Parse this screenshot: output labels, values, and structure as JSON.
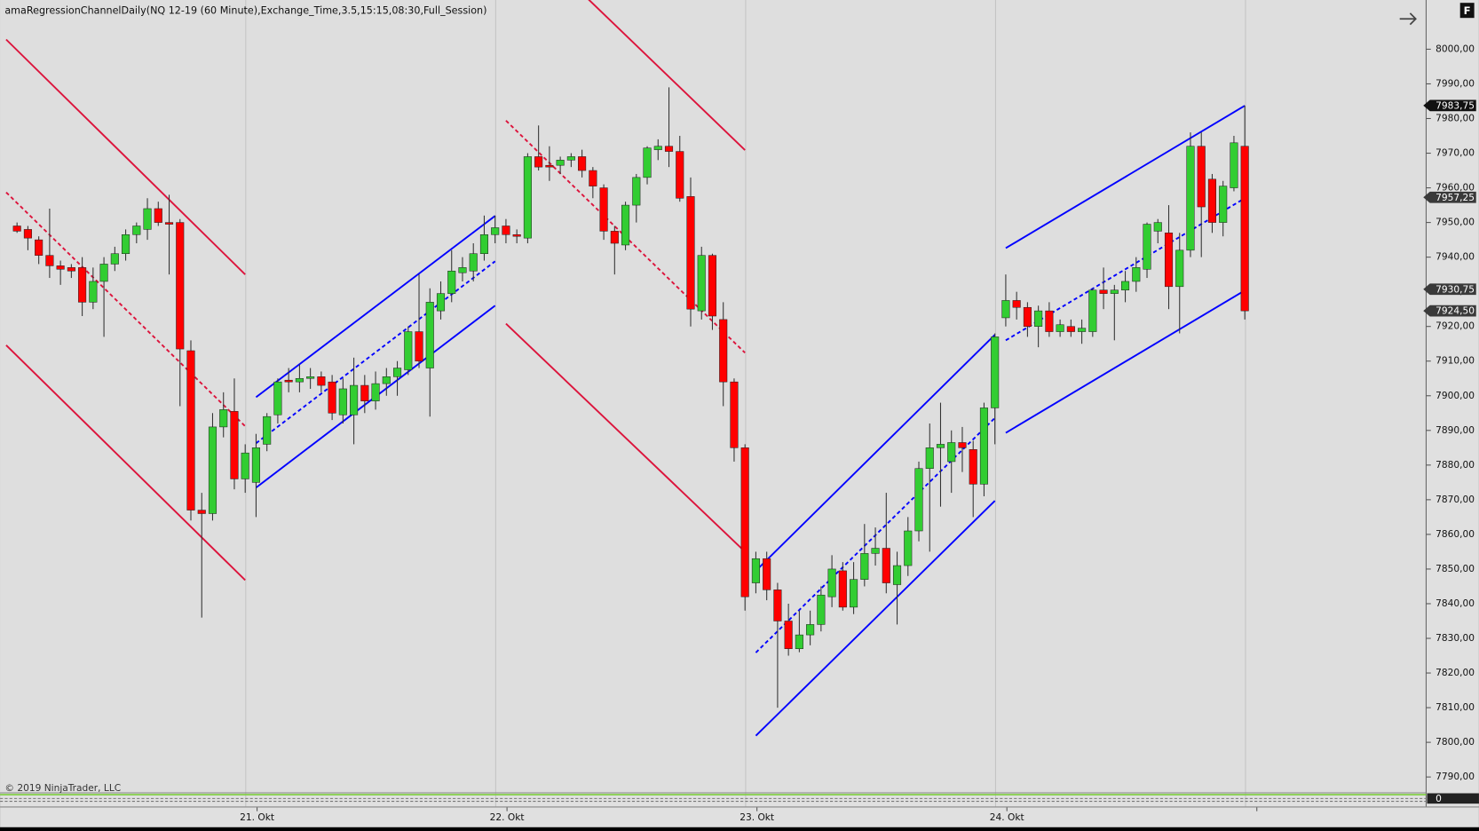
{
  "chart_data": {
    "type": "candlestick",
    "title": "amaRegressionChannelDaily(NQ 12-19 (60 Minute),Exchange_Time,3.5,15:15,08:30,Full_Session)",
    "copyright": "© 2019 NinjaTrader, LLC",
    "corner_icon": "F",
    "up_color": "#32cd32",
    "down_color": "#ff0000",
    "open": [
      7949,
      7948,
      7945,
      7940.5,
      7937.5,
      7937,
      7937,
      7927,
      7933,
      7938,
      7941,
      7946.5,
      7948,
      7954,
      7950,
      7950,
      7913,
      7867,
      7866,
      7891,
      7895.5,
      7876,
      7875,
      7886,
      7894.5,
      7904.5,
      7904,
      7905,
      7905.5,
      7904,
      7894.5,
      7894.5,
      7903,
      7898.5,
      7903.5,
      7905.5,
      7907.5,
      7918.5,
      7908,
      7924.5,
      7929.5,
      7935.5,
      7936,
      7941,
      7946.5,
      7949,
      7946.5,
      7945.5,
      7969,
      7966.5,
      7966.5,
      7968,
      7969,
      7965,
      7960,
      7947.5,
      7943.5,
      7955,
      7963,
      7971,
      7972,
      7970.5,
      7957.5,
      7924.5,
      7940.5,
      7922,
      7904,
      7885,
      7846,
      7853,
      7844,
      7835,
      7827,
      7831,
      7834,
      7842,
      7849.5,
      7839,
      7847,
      7854.5,
      7856,
      7845.5,
      7851,
      7861,
      7879,
      7885,
      7881,
      7886.5,
      7884.5,
      7874.5,
      7896.5,
      7922.5,
      7927.5,
      7925.5,
      7920,
      7924.5,
      7918.5,
      7920,
      7918.5,
      7918.5,
      7930.5,
      7929.5,
      7930.5,
      7933,
      7936.5,
      7947.5,
      7947,
      7931.5,
      7942,
      7972,
      7962.5,
      7950,
      7960,
      7972
    ],
    "high": [
      7950,
      7949,
      7946,
      7954,
      7939,
      7938,
      7940,
      7937,
      7940,
      7943,
      7948,
      7950,
      7957,
      7956,
      7958,
      7951,
      7916,
      7872,
      7895,
      7901,
      7905,
      7886,
      7889,
      7895,
      7905,
      7908,
      7909,
      7908,
      7907,
      7906,
      7905,
      7911,
      7906,
      7907,
      7908,
      7910,
      7920,
      7935,
      7931,
      7933,
      7942,
      7940,
      7944,
      7952,
      7952,
      7951,
      7948,
      7970,
      7978,
      7972,
      7969,
      7970,
      7971,
      7966,
      7961,
      7949,
      7956,
      7964,
      7972,
      7974,
      7989,
      7975,
      7963,
      7943,
      7941,
      7927,
      7905,
      7886,
      7855,
      7855,
      7846,
      7840,
      7838,
      7838,
      7845,
      7854,
      7852,
      7852,
      7863,
      7862,
      7872,
      7855,
      7865,
      7881,
      7892,
      7898,
      7890,
      7891,
      7887,
      7898,
      7918,
      7935,
      7930,
      7927,
      7926,
      7927,
      7922,
      7922,
      7922,
      7931,
      7937,
      7932,
      7936,
      7940,
      7950,
      7951,
      7955,
      7947,
      7976,
      7976,
      7964,
      7962,
      7975,
      7983.75
    ],
    "low": [
      7947,
      7942,
      7938,
      7934,
      7932,
      7934,
      7923,
      7925,
      7917,
      7936,
      7939,
      7944,
      7945,
      7949,
      7935,
      7897,
      7864,
      7836,
      7864,
      7888,
      7873,
      7872,
      7865,
      7884,
      7892,
      7901,
      7901,
      7902,
      7901,
      7893,
      7892,
      7886,
      7895,
      7896,
      7900,
      7900,
      7906,
      7908,
      7894,
      7922,
      7927,
      7933,
      7933,
      7939,
      7944,
      7944,
      7944,
      7944,
      7965,
      7962,
      7964,
      7966,
      7963,
      7957,
      7945,
      7935,
      7942,
      7950,
      7961,
      7968,
      7966,
      7956,
      7920,
      7922,
      7919,
      7897,
      7881,
      7838,
      7843,
      7841,
      7810,
      7825,
      7826,
      7828,
      7832,
      7839,
      7838,
      7837,
      7845,
      7851,
      7843,
      7834,
      7848,
      7858,
      7855,
      7868,
      7872,
      7878,
      7865,
      7871,
      7886,
      7920,
      7922,
      7917,
      7914,
      7917,
      7917,
      7917,
      7915,
      7917,
      7925,
      7916,
      7927,
      7930,
      7934,
      7944,
      7925,
      7918,
      7940,
      7940,
      7947,
      7946,
      7959,
      7922
    ],
    "close": [
      7947.5,
      7945.5,
      7940.5,
      7937.5,
      7936.5,
      7936,
      7927,
      7933,
      7938,
      7941,
      7946.5,
      7949,
      7954,
      7950,
      7949.5,
      7913.5,
      7867,
      7866,
      7891,
      7896,
      7876,
      7883.5,
      7885,
      7894,
      7904,
      7904,
      7905,
      7905.5,
      7903,
      7895,
      7902,
      7903,
      7898.5,
      7903.5,
      7905.5,
      7908,
      7918.5,
      7910,
      7927,
      7929.5,
      7936,
      7937,
      7941,
      7946.5,
      7948.5,
      7946.5,
      7946,
      7969,
      7966,
      7966,
      7968,
      7969,
      7965,
      7960.5,
      7947.5,
      7944,
      7955,
      7963,
      7971.5,
      7972,
      7970.5,
      7957,
      7925,
      7940.5,
      7923,
      7904,
      7885,
      7842,
      7853,
      7844,
      7835,
      7827,
      7831,
      7834,
      7842.5,
      7850,
      7839,
      7847,
      7854.5,
      7856,
      7846,
      7851,
      7861,
      7879,
      7885,
      7886,
      7886.5,
      7885,
      7874.5,
      7896.5,
      7917,
      7927.5,
      7925.5,
      7920,
      7924.5,
      7918.5,
      7920.5,
      7918.5,
      7919.5,
      7930.5,
      7929.5,
      7930.5,
      7933,
      7937,
      7949.5,
      7950,
      7931.5,
      7942,
      7972,
      7954.5,
      7950,
      7960.5,
      7973,
      7924.5
    ],
    "xlim": [
      -1.5625,
      129.69
    ],
    "ylim": [
      7785.57,
      8014.2
    ],
    "xticks": [
      {
        "value": 21,
        "label": "21. Okt"
      },
      {
        "value": 44,
        "label": "22. Okt"
      },
      {
        "value": 67,
        "label": "23. Okt"
      },
      {
        "value": 90,
        "label": "24. Okt"
      },
      {
        "value": 113,
        "label": null
      }
    ],
    "yticks": [
      {
        "value": 7790,
        "label": "7790,00"
      },
      {
        "value": 7800,
        "label": "7800,00"
      },
      {
        "value": 7810,
        "label": "7810,00"
      },
      {
        "value": 7820,
        "label": "7820,00"
      },
      {
        "value": 7830,
        "label": "7830,00"
      },
      {
        "value": 7840,
        "label": "7840,00"
      },
      {
        "value": 7850,
        "label": "7850,00"
      },
      {
        "value": 7860,
        "label": "7860,00"
      },
      {
        "value": 7870,
        "label": "7870,00"
      },
      {
        "value": 7880,
        "label": "7880,00"
      },
      {
        "value": 7890,
        "label": "7890,00"
      },
      {
        "value": 7900,
        "label": "7900,00"
      },
      {
        "value": 7910,
        "label": "7910,00"
      },
      {
        "value": 7920,
        "label": "7920,00"
      },
      {
        "value": 7930,
        "label": "7930,00"
      },
      {
        "value": 7940,
        "label": "7940,00"
      },
      {
        "value": 7950,
        "label": "7950,00"
      },
      {
        "value": 7960,
        "label": "7960,00"
      },
      {
        "value": 7970,
        "label": "7970,00"
      },
      {
        "value": 7980,
        "label": "7980,00"
      },
      {
        "value": 7990,
        "label": "7990,00"
      },
      {
        "value": 8000,
        "label": "8000,00"
      }
    ],
    "channels": [
      {
        "color": "#dc143c",
        "x": [
          -1,
          21
        ],
        "upper": [
          8002.8,
          7935
        ],
        "mid": [
          7958.7,
          7891.2
        ],
        "lower": [
          7914.6,
          7846.8
        ]
      },
      {
        "color": "#0000ff",
        "x": [
          22,
          44
        ],
        "upper": [
          7899.6,
          7951.9
        ],
        "mid": [
          7886.3,
          7938.8
        ],
        "lower": [
          7873.5,
          7926
        ]
      },
      {
        "color": "#dc143c",
        "x": [
          45,
          67
        ],
        "upper": [
          8037.3,
          7970.9
        ],
        "mid": [
          7979.4,
          7912.4
        ],
        "lower": [
          7920.8,
          7855
        ]
      },
      {
        "color": "#0000ff",
        "x": [
          68,
          90
        ],
        "upper": [
          7849.5,
          7917.6
        ],
        "mid": [
          7825.9,
          7893.6
        ],
        "lower": [
          7801.9,
          7869.7
        ]
      },
      {
        "color": "#0000ff",
        "x": [
          91,
          113
        ],
        "upper": [
          7942.6,
          7983.7
        ],
        "mid": [
          7916,
          7957
        ],
        "lower": [
          7889.3,
          7930.4
        ]
      }
    ],
    "price_markers": [
      {
        "value": 7983.75,
        "label": "7983,75"
      },
      {
        "value": 7957.25,
        "label": "7957,25"
      },
      {
        "value": 7930.75,
        "label": "7930,75"
      },
      {
        "value": 7924.5,
        "label": "7924,50"
      }
    ],
    "indicator_value": 0
  }
}
